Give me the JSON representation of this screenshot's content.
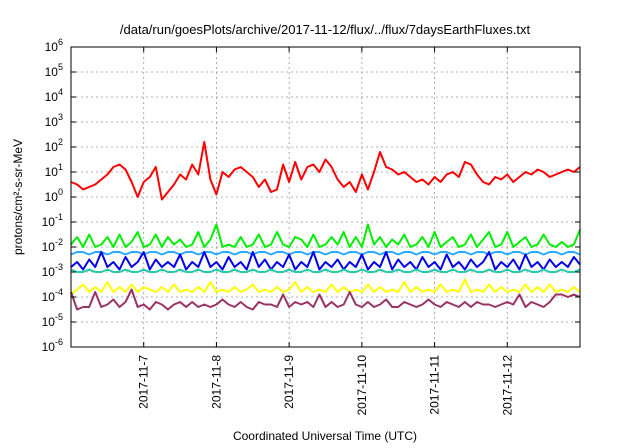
{
  "chart_data": {
    "type": "line",
    "title": "/data/run/goesPlots/archive/2017-11-12/flux/../flux/7daysEarthFluxes.txt",
    "xlabel": "Coordinated Universal Time (UTC)",
    "ylabel": "protons/cm²-s-sr-MeV",
    "y_scale": "log",
    "ylim": [
      1e-06,
      1000000.0
    ],
    "y_ticks": [
      {
        "base": "10",
        "exp": "-6",
        "value": -6
      },
      {
        "base": "10",
        "exp": "-5",
        "value": -5
      },
      {
        "base": "10",
        "exp": "-4",
        "value": -4
      },
      {
        "base": "10",
        "exp": "-3",
        "value": -3
      },
      {
        "base": "10",
        "exp": "-2",
        "value": -2
      },
      {
        "base": "10",
        "exp": "-1",
        "value": -1
      },
      {
        "base": "10",
        "exp": "0",
        "value": 0
      },
      {
        "base": "10",
        "exp": "1",
        "value": 1
      },
      {
        "base": "10",
        "exp": "2",
        "value": 2
      },
      {
        "base": "10",
        "exp": "3",
        "value": 3
      },
      {
        "base": "10",
        "exp": "4",
        "value": 4
      },
      {
        "base": "10",
        "exp": "5",
        "value": 5
      },
      {
        "base": "10",
        "exp": "6",
        "value": 6
      }
    ],
    "x_range_days": [
      0,
      7
    ],
    "x_ticks": [
      {
        "label": "2017-11-7",
        "day": 1
      },
      {
        "label": "2017-11-8",
        "day": 2
      },
      {
        "label": "2017-11-9",
        "day": 3
      },
      {
        "label": "2017-11-10",
        "day": 4
      },
      {
        "label": "2017-11-11",
        "day": 5
      },
      {
        "label": "2017-11-12",
        "day": 6
      }
    ],
    "grid": true,
    "series_x_days": [
      0.0,
      0.0833,
      0.1667,
      0.25,
      0.3333,
      0.4167,
      0.5,
      0.5833,
      0.6667,
      0.75,
      0.8333,
      0.9167,
      1.0,
      1.0833,
      1.1667,
      1.25,
      1.3333,
      1.4167,
      1.5,
      1.5833,
      1.6667,
      1.75,
      1.8333,
      1.9167,
      2.0,
      2.0833,
      2.1667,
      2.25,
      2.3333,
      2.4167,
      2.5,
      2.5833,
      2.6667,
      2.75,
      2.8333,
      2.9167,
      3.0,
      3.0833,
      3.1667,
      3.25,
      3.3333,
      3.4167,
      3.5,
      3.5833,
      3.6667,
      3.75,
      3.8333,
      3.9167,
      4.0,
      4.0833,
      4.1667,
      4.25,
      4.3333,
      4.4167,
      4.5,
      4.5833,
      4.6667,
      4.75,
      4.8333,
      4.9167,
      5.0,
      5.0833,
      5.1667,
      5.25,
      5.3333,
      5.4167,
      5.5,
      5.5833,
      5.6667,
      5.75,
      5.8333,
      5.9167,
      6.0,
      6.0833,
      6.1667,
      6.25,
      6.3333,
      6.4167,
      6.5,
      6.5833,
      6.6667,
      6.75,
      6.8333,
      6.9167,
      7.0
    ],
    "series": [
      {
        "color": "#ff0000",
        "log10_values": [
          0.6,
          0.5,
          0.3,
          0.4,
          0.5,
          0.7,
          0.9,
          1.2,
          1.3,
          1.1,
          0.6,
          0.0,
          0.6,
          0.8,
          1.2,
          -0.1,
          0.2,
          0.5,
          0.9,
          0.7,
          1.3,
          0.9,
          2.2,
          0.7,
          0.1,
          1.0,
          0.8,
          1.1,
          1.2,
          1.0,
          0.8,
          0.4,
          0.7,
          0.2,
          0.3,
          1.3,
          0.6,
          1.4,
          0.7,
          1.2,
          1.3,
          1.0,
          1.5,
          1.2,
          0.7,
          0.4,
          0.6,
          0.2,
          0.9,
          0.3,
          1.0,
          1.8,
          1.2,
          1.1,
          0.9,
          1.0,
          0.8,
          0.6,
          0.7,
          0.5,
          0.8,
          0.6,
          0.9,
          1.0,
          0.8,
          1.4,
          1.3,
          0.9,
          0.6,
          0.5,
          0.8,
          0.7,
          0.9,
          0.6,
          0.8,
          1.0,
          0.9,
          1.1,
          1.0,
          0.8,
          0.9,
          1.0,
          1.1,
          1.0,
          1.2
        ]
      },
      {
        "color": "#00ee00",
        "log10_values": [
          -1.9,
          -1.6,
          -2.0,
          -1.5,
          -2.0,
          -1.9,
          -1.6,
          -2.0,
          -1.5,
          -2.0,
          -1.8,
          -1.4,
          -2.0,
          -1.9,
          -1.5,
          -2.0,
          -1.6,
          -1.9,
          -1.7,
          -2.0,
          -1.9,
          -1.4,
          -2.0,
          -1.7,
          -1.1,
          -2.0,
          -1.9,
          -2.0,
          -1.6,
          -2.0,
          -1.9,
          -1.5,
          -2.0,
          -1.9,
          -1.4,
          -1.9,
          -2.0,
          -1.6,
          -1.7,
          -2.0,
          -1.5,
          -2.0,
          -1.9,
          -1.6,
          -1.9,
          -1.4,
          -2.0,
          -1.6,
          -2.0,
          -1.1,
          -1.9,
          -1.6,
          -2.0,
          -1.7,
          -1.9,
          -1.5,
          -2.0,
          -1.9,
          -1.6,
          -2.0,
          -1.4,
          -2.0,
          -1.8,
          -1.6,
          -2.0,
          -1.9,
          -1.5,
          -2.0,
          -1.7,
          -1.4,
          -2.0,
          -1.9,
          -1.4,
          -2.0,
          -1.8,
          -1.6,
          -2.0,
          -1.9,
          -1.5,
          -1.9,
          -2.0,
          -1.8,
          -2.0,
          -1.9,
          -1.3
        ]
      },
      {
        "color": "#2aaaff",
        "log10_values": [
          -2.3,
          -2.2,
          -2.2,
          -2.3,
          -2.2,
          -2.2,
          -2.3,
          -2.2,
          -2.2,
          -2.3,
          -2.2,
          -2.2,
          -2.3,
          -2.2,
          -2.2,
          -2.3,
          -2.2,
          -2.2,
          -2.3,
          -2.2,
          -2.2,
          -2.3,
          -2.2,
          -2.2,
          -2.3,
          -2.2,
          -2.2,
          -2.3,
          -2.2,
          -2.2,
          -2.3,
          -2.2,
          -2.2,
          -2.3,
          -2.2,
          -2.2,
          -2.3,
          -2.2,
          -2.2,
          -2.3,
          -2.2,
          -2.2,
          -2.3,
          -2.2,
          -2.2,
          -2.3,
          -2.2,
          -2.2,
          -2.3,
          -2.2,
          -2.2,
          -2.3,
          -2.2,
          -2.2,
          -2.3,
          -2.2,
          -2.2,
          -2.3,
          -2.2,
          -2.2,
          -2.3,
          -2.2,
          -2.2,
          -2.3,
          -2.2,
          -2.2,
          -2.3,
          -2.2,
          -2.2,
          -2.3,
          -2.2,
          -2.2,
          -2.3,
          -2.2,
          -2.2,
          -2.3,
          -2.2,
          -2.2,
          -2.3,
          -2.2,
          -2.2,
          -2.3,
          -2.2,
          -2.2,
          -2.3
        ]
      },
      {
        "color": "#0000ee",
        "log10_values": [
          -2.8,
          -2.6,
          -2.9,
          -2.5,
          -2.8,
          -2.2,
          -2.8,
          -2.6,
          -2.9,
          -2.4,
          -2.8,
          -2.6,
          -2.2,
          -2.9,
          -2.5,
          -2.8,
          -2.6,
          -2.8,
          -2.3,
          -2.9,
          -2.6,
          -2.8,
          -2.2,
          -2.8,
          -2.6,
          -2.9,
          -2.4,
          -2.8,
          -2.6,
          -2.9,
          -2.2,
          -2.8,
          -2.5,
          -2.9,
          -2.6,
          -2.8,
          -2.3,
          -2.9,
          -2.6,
          -2.8,
          -2.2,
          -2.9,
          -2.6,
          -2.8,
          -2.5,
          -2.9,
          -2.6,
          -2.8,
          -2.3,
          -2.9,
          -2.6,
          -2.8,
          -2.2,
          -2.9,
          -2.5,
          -2.8,
          -2.6,
          -2.9,
          -2.4,
          -2.8,
          -2.6,
          -2.9,
          -2.3,
          -2.8,
          -2.6,
          -2.9,
          -2.5,
          -2.8,
          -2.6,
          -2.2,
          -2.9,
          -2.6,
          -2.8,
          -2.5,
          -2.9,
          -2.3,
          -2.8,
          -2.6,
          -2.9,
          -2.5,
          -2.8,
          -2.6,
          -2.8,
          -2.4,
          -2.7
        ]
      },
      {
        "color": "#22ccaa",
        "log10_values": [
          -2.9,
          -3.0,
          -3.0,
          -2.9,
          -3.0,
          -3.0,
          -2.9,
          -3.0,
          -3.0,
          -2.9,
          -3.0,
          -3.0,
          -2.9,
          -3.0,
          -3.0,
          -2.9,
          -3.0,
          -3.0,
          -2.9,
          -3.0,
          -3.0,
          -2.9,
          -3.0,
          -3.0,
          -2.9,
          -3.0,
          -3.0,
          -2.9,
          -3.0,
          -3.0,
          -2.9,
          -3.0,
          -3.0,
          -2.9,
          -3.0,
          -3.0,
          -2.9,
          -3.0,
          -3.0,
          -2.9,
          -3.0,
          -3.0,
          -2.9,
          -3.0,
          -3.0,
          -2.9,
          -3.0,
          -3.0,
          -2.9,
          -3.0,
          -3.0,
          -2.9,
          -3.0,
          -3.0,
          -2.9,
          -3.0,
          -3.0,
          -2.9,
          -3.0,
          -3.0,
          -2.9,
          -3.0,
          -3.0,
          -2.9,
          -3.0,
          -3.0,
          -2.9,
          -3.0,
          -3.0,
          -2.9,
          -3.0,
          -3.0,
          -2.9,
          -3.0,
          -3.0,
          -2.9,
          -3.0,
          -3.0,
          -2.9,
          -3.0,
          -3.0,
          -2.9,
          -3.0,
          -3.0,
          -2.9
        ]
      },
      {
        "color": "#ffff00",
        "log10_values": [
          -3.9,
          -3.7,
          -3.5,
          -3.8,
          -3.6,
          -3.8,
          -3.4,
          -3.8,
          -3.6,
          -3.8,
          -3.5,
          -3.8,
          -3.6,
          -3.7,
          -3.8,
          -3.6,
          -3.8,
          -3.5,
          -3.8,
          -3.7,
          -3.8,
          -3.6,
          -3.8,
          -3.4,
          -3.8,
          -3.7,
          -3.8,
          -3.6,
          -3.8,
          -3.7,
          -3.5,
          -3.8,
          -3.7,
          -3.8,
          -3.6,
          -3.8,
          -3.7,
          -3.4,
          -3.8,
          -3.6,
          -3.8,
          -3.7,
          -3.8,
          -3.5,
          -3.8,
          -3.6,
          -3.8,
          -3.7,
          -3.8,
          -3.5,
          -3.8,
          -3.6,
          -3.8,
          -3.7,
          -3.8,
          -3.4,
          -3.8,
          -3.6,
          -3.8,
          -3.7,
          -3.8,
          -3.5,
          -3.8,
          -3.7,
          -3.8,
          -3.3,
          -3.8,
          -3.7,
          -3.8,
          -3.5,
          -3.8,
          -3.6,
          -3.8,
          -3.7,
          -3.8,
          -3.5,
          -3.8,
          -3.6,
          -3.8,
          -3.5,
          -3.8,
          -3.7,
          -3.8,
          -3.6,
          -3.8
        ]
      },
      {
        "color": "#993366",
        "log10_values": [
          -3.8,
          -4.5,
          -4.4,
          -4.4,
          -3.8,
          -4.4,
          -4.3,
          -4.1,
          -4.4,
          -4.2,
          -3.7,
          -4.4,
          -4.3,
          -4.5,
          -4.2,
          -4.3,
          -4.5,
          -4.3,
          -4.2,
          -4.4,
          -4.2,
          -4.4,
          -4.3,
          -4.4,
          -4.3,
          -4.1,
          -4.3,
          -4.4,
          -4.2,
          -4.4,
          -4.5,
          -4.2,
          -4.3,
          -4.3,
          -4.4,
          -3.9,
          -4.4,
          -4.2,
          -4.3,
          -4.2,
          -4.4,
          -3.9,
          -4.4,
          -4.2,
          -4.4,
          -4.3,
          -3.8,
          -4.3,
          -4.4,
          -4.2,
          -4.4,
          -4.3,
          -4.1,
          -4.4,
          -4.4,
          -4.2,
          -4.3,
          -4.4,
          -4.3,
          -4.1,
          -4.3,
          -4.4,
          -4.2,
          -4.3,
          -4.4,
          -4.2,
          -4.4,
          -4.2,
          -4.3,
          -4.3,
          -4.4,
          -4.3,
          -4.2,
          -4.3,
          -3.9,
          -4.4,
          -4.2,
          -4.3,
          -4.4,
          -4.2,
          -3.9,
          -3.9,
          -4.0,
          -3.9,
          -4.0
        ]
      }
    ]
  }
}
